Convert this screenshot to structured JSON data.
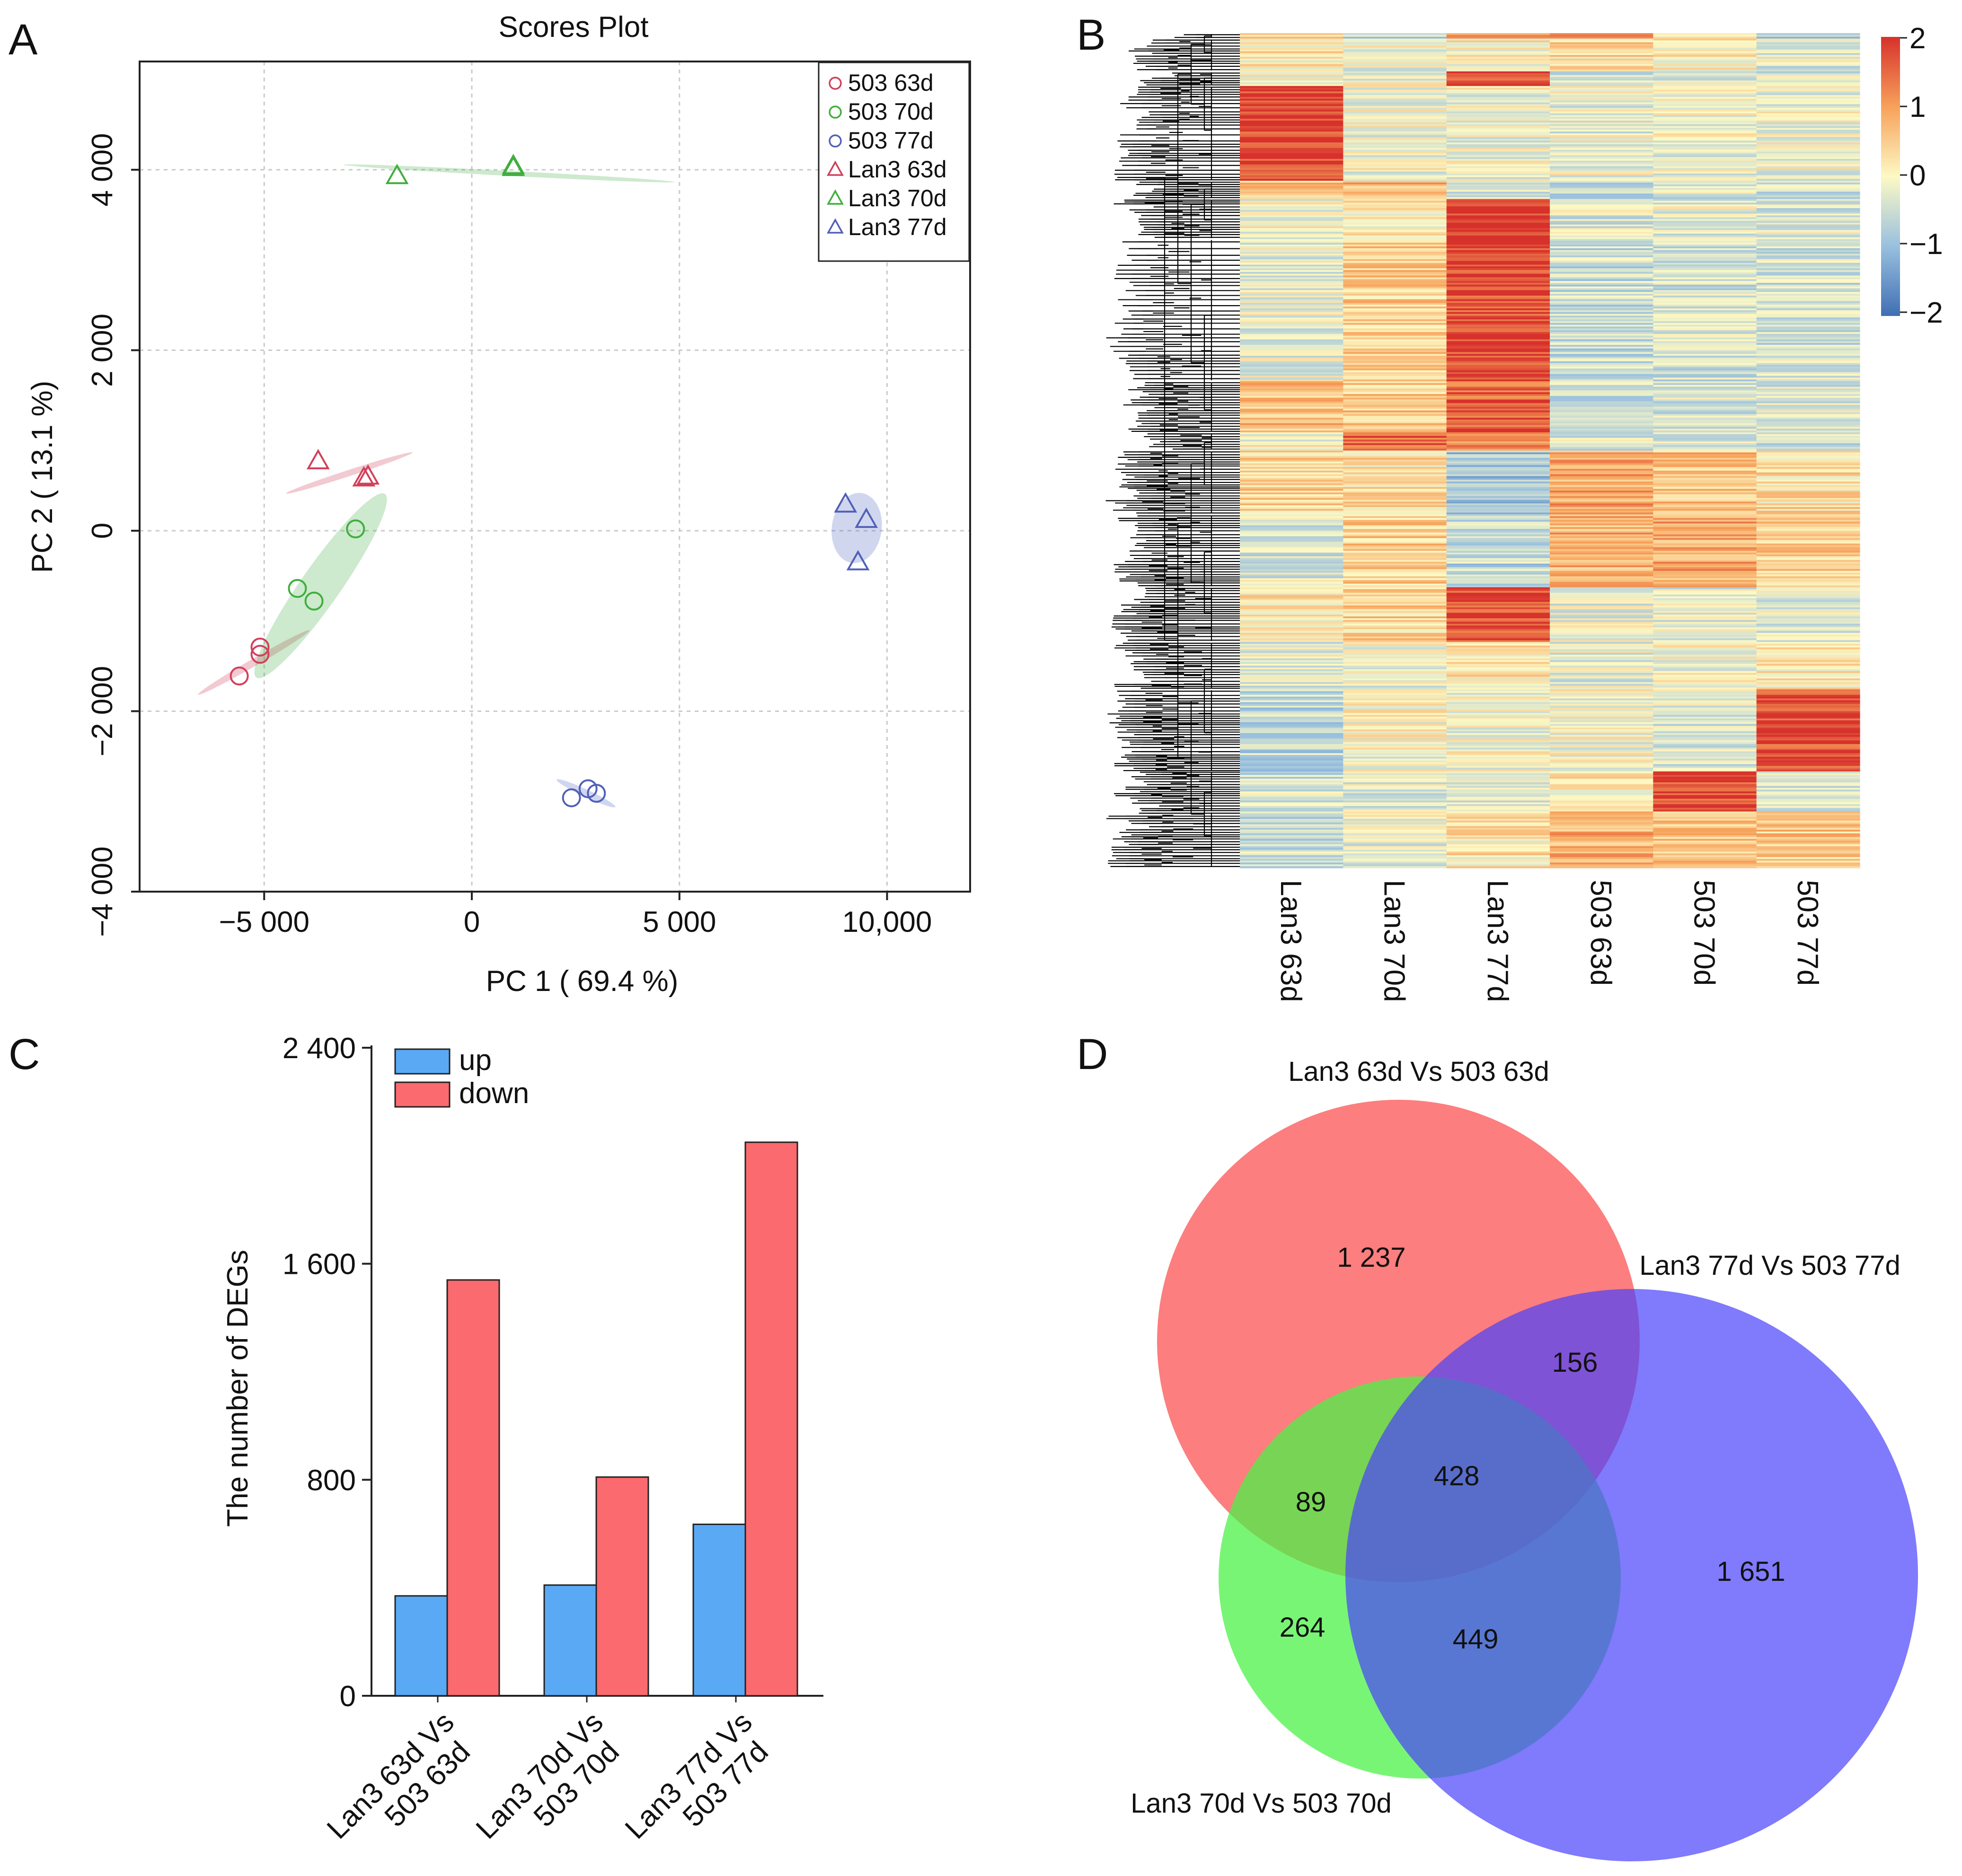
{
  "panels": {
    "a": "A",
    "b": "B",
    "c": "C",
    "d": "D"
  },
  "chart_data": [
    {
      "type": "scatter",
      "title": "Scores Plot",
      "xlabel": "PC 1 ( 69.4 %)",
      "ylabel": "PC 2 ( 13.1 %)",
      "xlim": [
        -8000,
        12000
      ],
      "ylim": [
        -4000,
        5200
      ],
      "xticks": [
        -5000,
        0,
        5000,
        10000
      ],
      "xtick_labels": [
        "−5 000",
        "0",
        "5 000",
        "10,000"
      ],
      "yticks": [
        -4000,
        -2000,
        0,
        2000,
        4000
      ],
      "ytick_labels": [
        "−4 000",
        "−2 000",
        "0",
        "2 000",
        "4 000"
      ],
      "grid": true,
      "legend_position": "top-right",
      "series": [
        {
          "name": "503 63d",
          "marker": "circle",
          "color": "#d1405a",
          "fill": "#d1405a",
          "points": [
            [
              -5600,
              -1610
            ],
            [
              -5100,
              -1290
            ],
            [
              -5100,
              -1370
            ]
          ],
          "ellipse": {
            "cx": -5250,
            "cy": -1460,
            "rx": 1550,
            "ry": 90,
            "angle_deg": -30
          }
        },
        {
          "name": "503 70d",
          "marker": "circle",
          "color": "#3fae3c",
          "fill": "#4caf50",
          "points": [
            [
              -2800,
              20
            ],
            [
              -4200,
              -640
            ],
            [
              -3800,
              -780
            ]
          ],
          "ellipse": {
            "cx": -3640,
            "cy": -610,
            "rx": 2700,
            "ry": 470,
            "angle_deg": -55
          }
        },
        {
          "name": "503 77d",
          "marker": "circle",
          "color": "#5060b8",
          "fill": "#5b6bc4",
          "points": [
            [
              2400,
              -2960
            ],
            [
              2800,
              -2860
            ],
            [
              3000,
              -2910
            ]
          ],
          "ellipse": {
            "cx": 2750,
            "cy": -2910,
            "rx": 780,
            "ry": 90,
            "angle_deg": 25
          }
        },
        {
          "name": "Lan3 63d",
          "marker": "triangle",
          "color": "#d1405a",
          "fill": "#d1405a",
          "points": [
            [
              -3700,
              770
            ],
            [
              -2600,
              580
            ],
            [
              -2500,
              600
            ]
          ],
          "ellipse": {
            "cx": -2950,
            "cy": 640,
            "rx": 1600,
            "ry": 75,
            "angle_deg": -18
          }
        },
        {
          "name": "Lan3 70d",
          "marker": "triangle",
          "color": "#3fae3c",
          "fill": "#4caf50",
          "points": [
            [
              -1800,
              3930
            ],
            [
              1000,
              4040
            ],
            [
              1000,
              4020
            ]
          ],
          "ellipse": {
            "cx": 900,
            "cy": 3960,
            "rx": 3990,
            "ry": 60,
            "angle_deg": 3
          }
        },
        {
          "name": "Lan3 77d",
          "marker": "triangle",
          "color": "#5060b8",
          "fill": "#5b6bc4",
          "points": [
            [
              9000,
              290
            ],
            [
              9500,
              120
            ],
            [
              9300,
              -350
            ]
          ],
          "ellipse": {
            "cx": 9270,
            "cy": 30,
            "rx": 850,
            "ry": 600,
            "angle_deg": -82
          }
        }
      ]
    },
    {
      "type": "heatmap",
      "columns": [
        "Lan3 63d",
        "Lan3 70d",
        "Lan3 77d",
        "503 63d",
        "503 70d",
        "503 77d"
      ],
      "row_clusters": [
        {
          "rows": 3,
          "values": [
            0.6,
            -0.6,
            1.2,
            1.5,
            0.2,
            -0.8
          ]
        },
        {
          "rows": 18,
          "values": [
            0.2,
            -0.1,
            0.1,
            0.3,
            0.1,
            -0.3
          ]
        },
        {
          "rows": 8,
          "values": [
            0.1,
            -0.1,
            1.7,
            -0.4,
            -0.2,
            -0.3
          ]
        },
        {
          "rows": 52,
          "values": [
            1.9,
            -0.1,
            -0.1,
            -0.2,
            -0.1,
            -0.1
          ]
        },
        {
          "rows": 10,
          "values": [
            0.5,
            0.8,
            -0.3,
            -0.6,
            -0.4,
            -0.5
          ]
        },
        {
          "rows": 22,
          "values": [
            -0.1,
            0.1,
            1.9,
            -0.3,
            -0.2,
            -0.3
          ]
        },
        {
          "rows": 78,
          "values": [
            -0.2,
            0.5,
            1.8,
            -0.5,
            -0.4,
            -0.4
          ]
        },
        {
          "rows": 28,
          "values": [
            0.6,
            0.5,
            1.6,
            -0.4,
            -0.4,
            -0.3
          ]
        },
        {
          "rows": 10,
          "values": [
            -0.1,
            1.6,
            1.2,
            -0.3,
            -0.3,
            -0.4
          ]
        },
        {
          "rows": 35,
          "values": [
            0.4,
            0.3,
            -0.9,
            0.9,
            0.6,
            0.3
          ]
        },
        {
          "rows": 40,
          "values": [
            -0.3,
            0.5,
            -0.6,
            0.8,
            0.9,
            0.5
          ]
        },
        {
          "rows": 30,
          "values": [
            0.2,
            0.4,
            1.8,
            -0.2,
            -0.3,
            -0.3
          ]
        },
        {
          "rows": 26,
          "values": [
            -0.2,
            -0.2,
            0.2,
            -0.2,
            -0.1,
            0.1
          ]
        },
        {
          "rows": 45,
          "values": [
            -0.6,
            0.0,
            -0.1,
            -0.1,
            -0.3,
            1.8
          ]
        },
        {
          "rows": 22,
          "values": [
            -0.4,
            -0.3,
            -0.2,
            0.2,
            1.8,
            -0.3
          ]
        },
        {
          "rows": 31,
          "values": [
            -0.5,
            -0.2,
            0.2,
            0.8,
            0.6,
            0.5
          ]
        }
      ],
      "colorbar": {
        "min": -2,
        "max": 2,
        "ticks": [
          "2",
          "1",
          "0",
          "−1",
          "−2"
        ]
      }
    },
    {
      "type": "bar",
      "categories": [
        [
          "Lan3 63d Vs",
          "503 63d"
        ],
        [
          "Lan3 70d Vs",
          "503 70d"
        ],
        [
          "Lan3 77d Vs",
          "503 77d"
        ]
      ],
      "series": [
        {
          "name": "up",
          "values": [
            370,
            410,
            635
          ],
          "color": "#5aa9f5"
        },
        {
          "name": "down",
          "values": [
            1540,
            810,
            2050
          ],
          "color": "#fb6a6e"
        }
      ],
      "ylabel": "The number of DEGs",
      "ylim": [
        0,
        2400
      ],
      "yticks": [
        0,
        800,
        1600,
        2400
      ],
      "ytick_labels": [
        "0",
        "800",
        "1 600",
        "2 400"
      ],
      "legend_position": "top-left"
    },
    {
      "type": "venn",
      "sets": [
        {
          "label": "Lan3 63d Vs 503 63d",
          "color": "#fb5a5a"
        },
        {
          "label": "Lan3 70d Vs 503 70d",
          "color": "#4cf248"
        },
        {
          "label": "Lan3 77d Vs 503 77d",
          "color": "#5a52fb"
        }
      ],
      "regions": {
        "only_63d": "1 237",
        "only_70d": "264",
        "only_77d": "1 651",
        "63d_70d": "89",
        "63d_77d": "156",
        "70d_77d": "449",
        "all": "428"
      }
    }
  ]
}
